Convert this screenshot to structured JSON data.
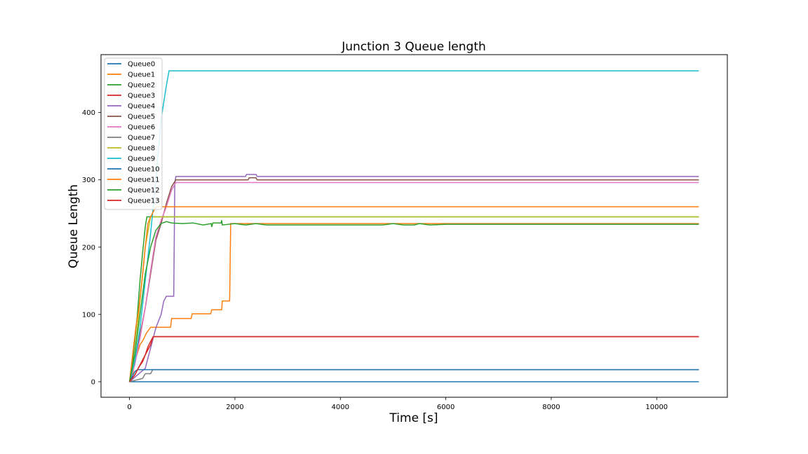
{
  "chart_data": {
    "type": "line",
    "title": "Junction 3 Queue length",
    "xlabel": "Time [s]",
    "ylabel": "Queue Length",
    "xlim": [
      -540,
      11340
    ],
    "ylim": [
      -23,
      486
    ],
    "xticks": [
      0,
      2000,
      4000,
      6000,
      8000,
      10000
    ],
    "yticks": [
      0,
      100,
      200,
      300,
      400
    ],
    "grid": false,
    "legend_position": "top-left",
    "series": [
      {
        "name": "Queue0",
        "color": "#1f77b4",
        "points": [
          [
            0,
            0
          ],
          [
            10800,
            0
          ]
        ]
      },
      {
        "name": "Queue1",
        "color": "#ff7f0e",
        "points": [
          [
            0,
            0
          ],
          [
            60,
            10
          ],
          [
            100,
            30
          ],
          [
            140,
            40
          ],
          [
            200,
            55
          ],
          [
            260,
            62
          ],
          [
            320,
            72
          ],
          [
            400,
            81
          ],
          [
            780,
            81
          ],
          [
            800,
            94
          ],
          [
            1170,
            94
          ],
          [
            1190,
            101
          ],
          [
            1540,
            101
          ],
          [
            1560,
            107
          ],
          [
            1750,
            107
          ],
          [
            1760,
            120
          ],
          [
            1900,
            120
          ],
          [
            1920,
            235
          ],
          [
            10800,
            235
          ]
        ]
      },
      {
        "name": "Queue2",
        "color": "#2ca02c",
        "points": [
          [
            0,
            0
          ],
          [
            50,
            20
          ],
          [
            100,
            60
          ],
          [
            150,
            100
          ],
          [
            200,
            150
          ],
          [
            260,
            200
          ],
          [
            300,
            230
          ],
          [
            330,
            245
          ],
          [
            10800,
            245
          ]
        ]
      },
      {
        "name": "Queue3",
        "color": "#d62728",
        "points": [
          [
            0,
            0
          ],
          [
            100,
            10
          ],
          [
            180,
            22
          ],
          [
            250,
            30
          ],
          [
            300,
            40
          ],
          [
            350,
            52
          ],
          [
            400,
            60
          ],
          [
            450,
            67
          ],
          [
            10800,
            67
          ]
        ]
      },
      {
        "name": "Queue4",
        "color": "#9467bd",
        "points": [
          [
            0,
            0
          ],
          [
            300,
            20
          ],
          [
            400,
            50
          ],
          [
            500,
            80
          ],
          [
            600,
            100
          ],
          [
            650,
            120
          ],
          [
            700,
            127
          ],
          [
            840,
            127
          ],
          [
            860,
            295
          ],
          [
            880,
            305
          ],
          [
            2200,
            305
          ],
          [
            2220,
            308
          ],
          [
            2400,
            308
          ],
          [
            2420,
            305
          ],
          [
            10800,
            305
          ]
        ]
      },
      {
        "name": "Queue5",
        "color": "#8c564b",
        "points": [
          [
            0,
            0
          ],
          [
            100,
            30
          ],
          [
            200,
            70
          ],
          [
            300,
            110
          ],
          [
            400,
            160
          ],
          [
            500,
            210
          ],
          [
            600,
            235
          ],
          [
            700,
            265
          ],
          [
            800,
            290
          ],
          [
            880,
            300
          ],
          [
            2250,
            300
          ],
          [
            2270,
            303
          ],
          [
            2400,
            303
          ],
          [
            2420,
            300
          ],
          [
            10800,
            300
          ]
        ]
      },
      {
        "name": "Queue6",
        "color": "#e377c2",
        "points": [
          [
            0,
            0
          ],
          [
            100,
            25
          ],
          [
            200,
            65
          ],
          [
            300,
            110
          ],
          [
            400,
            165
          ],
          [
            500,
            215
          ],
          [
            600,
            240
          ],
          [
            700,
            260
          ],
          [
            800,
            285
          ],
          [
            880,
            296
          ],
          [
            10800,
            296
          ]
        ]
      },
      {
        "name": "Queue7",
        "color": "#7f7f7f",
        "points": [
          [
            0,
            0
          ],
          [
            250,
            5
          ],
          [
            300,
            12
          ],
          [
            400,
            12
          ],
          [
            440,
            18
          ],
          [
            10800,
            18
          ]
        ]
      },
      {
        "name": "Queue8",
        "color": "#bcbd22",
        "points": [
          [
            0,
            0
          ],
          [
            100,
            40
          ],
          [
            200,
            120
          ],
          [
            300,
            200
          ],
          [
            400,
            245
          ],
          [
            10800,
            245
          ]
        ]
      },
      {
        "name": "Queue9",
        "color": "#17becf",
        "points": [
          [
            0,
            0
          ],
          [
            100,
            30
          ],
          [
            200,
            80
          ],
          [
            300,
            150
          ],
          [
            400,
            220
          ],
          [
            500,
            300
          ],
          [
            600,
            390
          ],
          [
            700,
            440
          ],
          [
            750,
            462
          ],
          [
            10800,
            462
          ]
        ]
      },
      {
        "name": "Queue10",
        "color": "#1f77b4",
        "points": [
          [
            0,
            0
          ],
          [
            100,
            15
          ],
          [
            150,
            18
          ],
          [
            10800,
            18
          ]
        ]
      },
      {
        "name": "Queue11",
        "color": "#ff7f0e",
        "points": [
          [
            0,
            0
          ],
          [
            60,
            40
          ],
          [
            120,
            80
          ],
          [
            180,
            110
          ],
          [
            250,
            160
          ],
          [
            300,
            200
          ],
          [
            350,
            235
          ],
          [
            400,
            245
          ],
          [
            500,
            260
          ],
          [
            10800,
            260
          ]
        ]
      },
      {
        "name": "Queue12",
        "color": "#2ca02c",
        "points": [
          [
            0,
            0
          ],
          [
            100,
            40
          ],
          [
            200,
            100
          ],
          [
            300,
            160
          ],
          [
            400,
            200
          ],
          [
            500,
            225
          ],
          [
            600,
            235
          ],
          [
            700,
            238
          ],
          [
            800,
            236
          ],
          [
            1000,
            235
          ],
          [
            1200,
            236
          ],
          [
            1400,
            233
          ],
          [
            1550,
            235
          ],
          [
            1560,
            230
          ],
          [
            1580,
            236
          ],
          [
            1740,
            236
          ],
          [
            1750,
            240
          ],
          [
            1760,
            233
          ],
          [
            2000,
            235
          ],
          [
            2200,
            233
          ],
          [
            2400,
            235
          ],
          [
            2600,
            233
          ],
          [
            4800,
            233
          ],
          [
            5000,
            235
          ],
          [
            5200,
            233
          ],
          [
            5400,
            233
          ],
          [
            5500,
            235
          ],
          [
            5700,
            233
          ],
          [
            6000,
            234
          ],
          [
            10800,
            234
          ]
        ]
      },
      {
        "name": "Queue13",
        "color": "#d62728",
        "points": [
          [
            0,
            0
          ],
          [
            100,
            10
          ],
          [
            200,
            25
          ],
          [
            300,
            40
          ],
          [
            400,
            55
          ],
          [
            450,
            67
          ],
          [
            10800,
            67
          ]
        ]
      }
    ]
  }
}
